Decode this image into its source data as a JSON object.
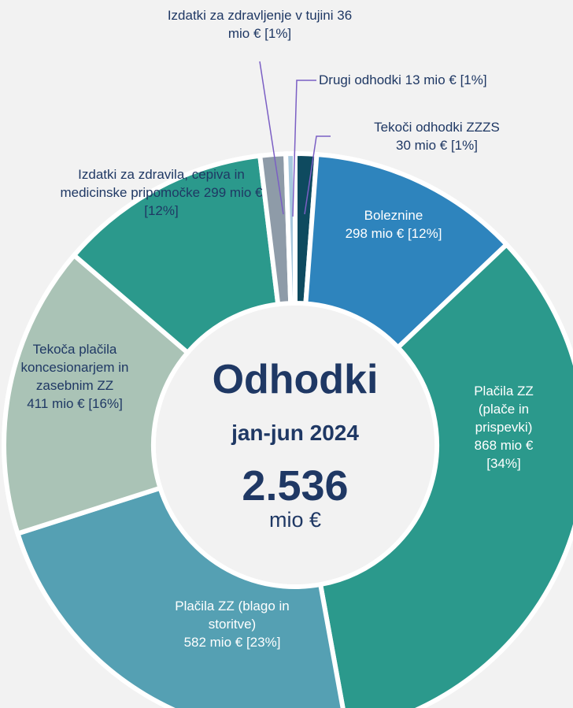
{
  "chart_data": {
    "type": "pie",
    "donut": true,
    "center": {
      "title": "Odhodki",
      "period": "jan-jun 2024",
      "total": "2.536",
      "unit": "mio €"
    },
    "categories": [
      "Tekoči odhodki ZZZS",
      "Boleznine",
      "Plačila ZZ (plače in prispevki)",
      "Plačila ZZ (blago in storitve)",
      "Tekoča plačila koncesionarjem in zasebnim ZZ",
      "Izdatki za zdravila, cepiva in medicinske pripomočke",
      "Izdatki za zdravljenje v tujini",
      "Drugi odhodki"
    ],
    "values": [
      30,
      298,
      868,
      582,
      411,
      299,
      36,
      13
    ],
    "value_labels": [
      "30 mio € [1%]",
      "298 mio € [12%]",
      "868 mio € [34%]",
      "582 mio € [23%]",
      "411 mio € [16%]",
      "299 mio € [12%]",
      "36 mio € [1%]",
      "13 mio € [1%]"
    ],
    "colors": [
      "#0e4a5f",
      "#2e84bd",
      "#2b998c",
      "#55a0b3",
      "#aac3b6",
      "#2b998c",
      "#8e9ba8",
      "#a7c8de"
    ]
  }
}
